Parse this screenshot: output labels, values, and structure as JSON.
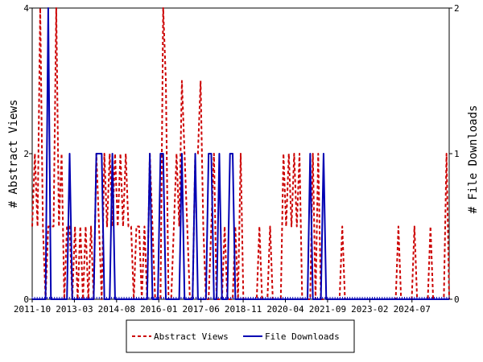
{
  "chart_data": {
    "type": "line",
    "ylabel_left": "# Abstract Views",
    "ylabel_right": "# File Downloads",
    "x_tick_labels": [
      "2011-10",
      "2013-03",
      "2014-08",
      "2016-01",
      "2017-06",
      "2018-11",
      "2020-04",
      "2021-09",
      "2023-02",
      "2024-07"
    ],
    "x_range": [
      "2011-10",
      "2025-11"
    ],
    "ylim_left": [
      0,
      4
    ],
    "ylim_right": [
      0,
      2
    ],
    "yticks_left": [
      "0",
      "2",
      "4"
    ],
    "yticks_right": [
      "0",
      "1",
      "2"
    ],
    "grid": false,
    "legend_position": "bottom-center",
    "series": [
      {
        "name": "Abstract Views",
        "axis": "left",
        "color": "#cc0000",
        "style": "dashed",
        "values": [
          1,
          2,
          1,
          4,
          1,
          0,
          1,
          1,
          1,
          4,
          1,
          2,
          0,
          1,
          1,
          0,
          1,
          0,
          1,
          0,
          1,
          0,
          1,
          0,
          2,
          1,
          0,
          2,
          1,
          2,
          1,
          2,
          1,
          2,
          1,
          2,
          1,
          1,
          0,
          1,
          1,
          0,
          1,
          0,
          2,
          1,
          0,
          0,
          0,
          4,
          3,
          0,
          0,
          1,
          2,
          1,
          3,
          2,
          1,
          0,
          0,
          2,
          2,
          3,
          1,
          0,
          0,
          1,
          2,
          0,
          0,
          0,
          1,
          0,
          0,
          0,
          1,
          0,
          2,
          0,
          0,
          0,
          0,
          0,
          0,
          1,
          0,
          0,
          0,
          1,
          0,
          0,
          0,
          0,
          2,
          1,
          2,
          1,
          2,
          1,
          2,
          0,
          0,
          0,
          0,
          2,
          0,
          2,
          0,
          0,
          0,
          0,
          0,
          0,
          0,
          0,
          1,
          0,
          0,
          0,
          0,
          0,
          0,
          0,
          0,
          0,
          0,
          0,
          0,
          0,
          0,
          0,
          0,
          0,
          0,
          0,
          0,
          1,
          0,
          0,
          0,
          0,
          0,
          1,
          0,
          0,
          0,
          0,
          0,
          1,
          0,
          0,
          0,
          0,
          0,
          2,
          0
        ]
      },
      {
        "name": "File Downloads",
        "axis": "right",
        "color": "#0000b3",
        "style": "solid",
        "values": [
          0,
          0,
          0,
          0,
          0,
          0,
          2,
          0,
          0,
          0,
          0,
          0,
          0,
          0,
          1,
          0,
          0,
          0,
          0,
          0,
          0,
          0,
          0,
          0,
          1,
          1,
          1,
          0,
          0,
          0,
          1,
          0,
          0,
          0,
          0,
          0,
          0,
          0,
          0,
          0,
          0,
          0,
          0,
          0,
          1,
          0,
          0,
          0,
          1,
          1,
          0,
          0,
          0,
          0,
          0,
          0,
          1,
          0,
          0,
          0,
          0,
          1,
          0,
          0,
          0,
          0,
          1,
          1,
          0,
          0,
          1,
          0,
          0,
          0,
          1,
          1,
          0,
          0,
          0,
          0,
          0,
          0,
          0,
          0,
          0,
          0,
          0,
          0,
          0,
          0,
          0,
          0,
          0,
          0,
          0,
          0,
          0,
          0,
          0,
          0,
          0,
          0,
          0,
          0,
          1,
          0,
          0,
          0,
          0,
          1,
          0,
          0,
          0,
          0,
          0,
          0,
          0,
          0,
          0,
          0,
          0,
          0,
          0,
          0,
          0,
          0,
          0,
          0,
          0,
          0,
          0,
          0,
          0,
          0,
          0,
          0,
          0,
          0,
          0,
          0,
          0,
          0,
          0,
          0,
          0,
          0,
          0,
          0,
          0,
          0,
          0,
          0,
          0,
          0,
          0,
          0,
          0
        ]
      }
    ]
  }
}
